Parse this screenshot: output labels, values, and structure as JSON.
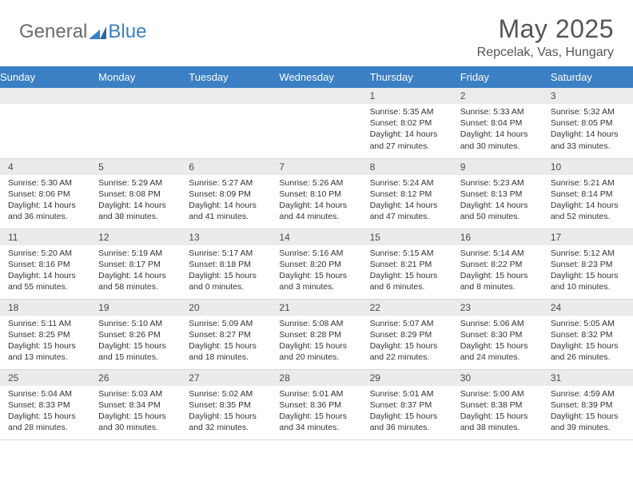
{
  "brand": {
    "general": "General",
    "blue": "Blue"
  },
  "title": "May 2025",
  "location": "Repcelak, Vas, Hungary",
  "colors": {
    "header_bg": "#3b7fc4",
    "header_text": "#ffffff",
    "daynum_bg": "#ebebeb",
    "text": "#333333",
    "title_text": "#555555",
    "logo_gray": "#6b6b6b",
    "logo_blue": "#3b7fc4",
    "border": "#d9d9d9",
    "page_bg": "#ffffff"
  },
  "fonts": {
    "base": "Arial",
    "title_size": 32,
    "header_size": 13,
    "cell_size": 10.5
  },
  "weekdays": [
    "Sunday",
    "Monday",
    "Tuesday",
    "Wednesday",
    "Thursday",
    "Friday",
    "Saturday"
  ],
  "weeks": [
    [
      null,
      null,
      null,
      null,
      {
        "n": "1",
        "sr": "5:35 AM",
        "ss": "8:02 PM",
        "dl": "14 hours and 27 minutes."
      },
      {
        "n": "2",
        "sr": "5:33 AM",
        "ss": "8:04 PM",
        "dl": "14 hours and 30 minutes."
      },
      {
        "n": "3",
        "sr": "5:32 AM",
        "ss": "8:05 PM",
        "dl": "14 hours and 33 minutes."
      }
    ],
    [
      {
        "n": "4",
        "sr": "5:30 AM",
        "ss": "8:06 PM",
        "dl": "14 hours and 36 minutes."
      },
      {
        "n": "5",
        "sr": "5:29 AM",
        "ss": "8:08 PM",
        "dl": "14 hours and 38 minutes."
      },
      {
        "n": "6",
        "sr": "5:27 AM",
        "ss": "8:09 PM",
        "dl": "14 hours and 41 minutes."
      },
      {
        "n": "7",
        "sr": "5:26 AM",
        "ss": "8:10 PM",
        "dl": "14 hours and 44 minutes."
      },
      {
        "n": "8",
        "sr": "5:24 AM",
        "ss": "8:12 PM",
        "dl": "14 hours and 47 minutes."
      },
      {
        "n": "9",
        "sr": "5:23 AM",
        "ss": "8:13 PM",
        "dl": "14 hours and 50 minutes."
      },
      {
        "n": "10",
        "sr": "5:21 AM",
        "ss": "8:14 PM",
        "dl": "14 hours and 52 minutes."
      }
    ],
    [
      {
        "n": "11",
        "sr": "5:20 AM",
        "ss": "8:16 PM",
        "dl": "14 hours and 55 minutes."
      },
      {
        "n": "12",
        "sr": "5:19 AM",
        "ss": "8:17 PM",
        "dl": "14 hours and 58 minutes."
      },
      {
        "n": "13",
        "sr": "5:17 AM",
        "ss": "8:18 PM",
        "dl": "15 hours and 0 minutes."
      },
      {
        "n": "14",
        "sr": "5:16 AM",
        "ss": "8:20 PM",
        "dl": "15 hours and 3 minutes."
      },
      {
        "n": "15",
        "sr": "5:15 AM",
        "ss": "8:21 PM",
        "dl": "15 hours and 6 minutes."
      },
      {
        "n": "16",
        "sr": "5:14 AM",
        "ss": "8:22 PM",
        "dl": "15 hours and 8 minutes."
      },
      {
        "n": "17",
        "sr": "5:12 AM",
        "ss": "8:23 PM",
        "dl": "15 hours and 10 minutes."
      }
    ],
    [
      {
        "n": "18",
        "sr": "5:11 AM",
        "ss": "8:25 PM",
        "dl": "15 hours and 13 minutes."
      },
      {
        "n": "19",
        "sr": "5:10 AM",
        "ss": "8:26 PM",
        "dl": "15 hours and 15 minutes."
      },
      {
        "n": "20",
        "sr": "5:09 AM",
        "ss": "8:27 PM",
        "dl": "15 hours and 18 minutes."
      },
      {
        "n": "21",
        "sr": "5:08 AM",
        "ss": "8:28 PM",
        "dl": "15 hours and 20 minutes."
      },
      {
        "n": "22",
        "sr": "5:07 AM",
        "ss": "8:29 PM",
        "dl": "15 hours and 22 minutes."
      },
      {
        "n": "23",
        "sr": "5:06 AM",
        "ss": "8:30 PM",
        "dl": "15 hours and 24 minutes."
      },
      {
        "n": "24",
        "sr": "5:05 AM",
        "ss": "8:32 PM",
        "dl": "15 hours and 26 minutes."
      }
    ],
    [
      {
        "n": "25",
        "sr": "5:04 AM",
        "ss": "8:33 PM",
        "dl": "15 hours and 28 minutes."
      },
      {
        "n": "26",
        "sr": "5:03 AM",
        "ss": "8:34 PM",
        "dl": "15 hours and 30 minutes."
      },
      {
        "n": "27",
        "sr": "5:02 AM",
        "ss": "8:35 PM",
        "dl": "15 hours and 32 minutes."
      },
      {
        "n": "28",
        "sr": "5:01 AM",
        "ss": "8:36 PM",
        "dl": "15 hours and 34 minutes."
      },
      {
        "n": "29",
        "sr": "5:01 AM",
        "ss": "8:37 PM",
        "dl": "15 hours and 36 minutes."
      },
      {
        "n": "30",
        "sr": "5:00 AM",
        "ss": "8:38 PM",
        "dl": "15 hours and 38 minutes."
      },
      {
        "n": "31",
        "sr": "4:59 AM",
        "ss": "8:39 PM",
        "dl": "15 hours and 39 minutes."
      }
    ]
  ],
  "labels": {
    "sunrise": "Sunrise:",
    "sunset": "Sunset:",
    "daylight": "Daylight:"
  }
}
